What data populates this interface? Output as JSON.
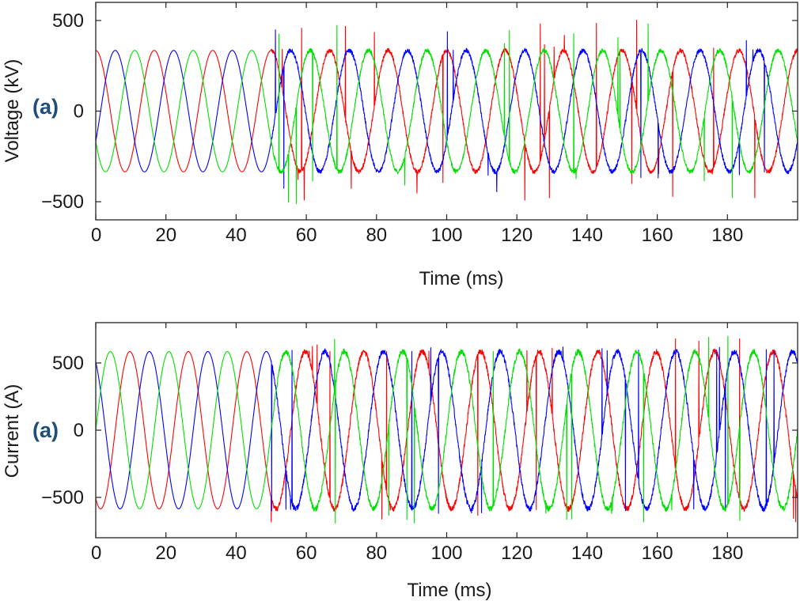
{
  "figure": {
    "colors": {
      "phase_a": "#ff0000",
      "phase_b": "#0000ff",
      "phase_c": "#00e000",
      "axes": "#222222",
      "panel_label": "#1f4e79"
    }
  },
  "chart_data": [
    {
      "type": "line",
      "panel_label": "(a)",
      "xlabel": "Time (ms)",
      "ylabel": "Voltage (kV)",
      "xlim": [
        0,
        200
      ],
      "ylim": [
        -600,
        600
      ],
      "xticks": [
        0,
        20,
        40,
        60,
        80,
        100,
        120,
        140,
        160,
        180
      ],
      "xtick_labels": [
        "0",
        "20",
        "40",
        "60",
        "80",
        "100",
        "120",
        "140",
        "160",
        "180"
      ],
      "yticks": [
        -500,
        0,
        500
      ],
      "ytick_labels": [
        "−500",
        "0",
        "500"
      ],
      "grid": false,
      "legend": "none",
      "frequency_hz": 60,
      "disturbance_start_ms": 50,
      "series": [
        {
          "color": "#ff0000",
          "amplitude": 335,
          "phase_deg": 90,
          "noise_after_ms": 50,
          "spike_peak": 520
        },
        {
          "color": "#0000ff",
          "amplitude": 335,
          "phase_deg": -30,
          "noise_after_ms": 50,
          "spike_peak": 460
        },
        {
          "color": "#00e000",
          "amplitude": 335,
          "phase_deg": 210,
          "noise_after_ms": 50,
          "spike_peak": 520
        }
      ]
    },
    {
      "type": "line",
      "panel_label": "(a)",
      "xlabel": "Time (ms)",
      "ylabel": "Current (A)",
      "xlim": [
        0,
        200
      ],
      "ylim": [
        -800,
        800
      ],
      "xticks": [
        0,
        20,
        40,
        60,
        80,
        100,
        120,
        140,
        160,
        180
      ],
      "xtick_labels": [
        "0",
        "20",
        "40",
        "60",
        "80",
        "100",
        "120",
        "140",
        "160",
        "180"
      ],
      "yticks": [
        -500,
        0,
        500
      ],
      "ytick_labels": [
        "−500",
        "0",
        "500"
      ],
      "grid": false,
      "legend": "none",
      "frequency_hz": 60,
      "disturbance_start_ms": 50,
      "series": [
        {
          "color": "#ff0000",
          "amplitude": 585,
          "phase_deg": -120,
          "noise_after_ms": 50,
          "spike_peak": 690
        },
        {
          "color": "#0000ff",
          "amplitude": 585,
          "phase_deg": 120,
          "noise_after_ms": 50,
          "spike_peak": 620
        },
        {
          "color": "#00e000",
          "amplitude": 585,
          "phase_deg": 0,
          "noise_after_ms": 50,
          "spike_peak": 700
        }
      ]
    }
  ]
}
